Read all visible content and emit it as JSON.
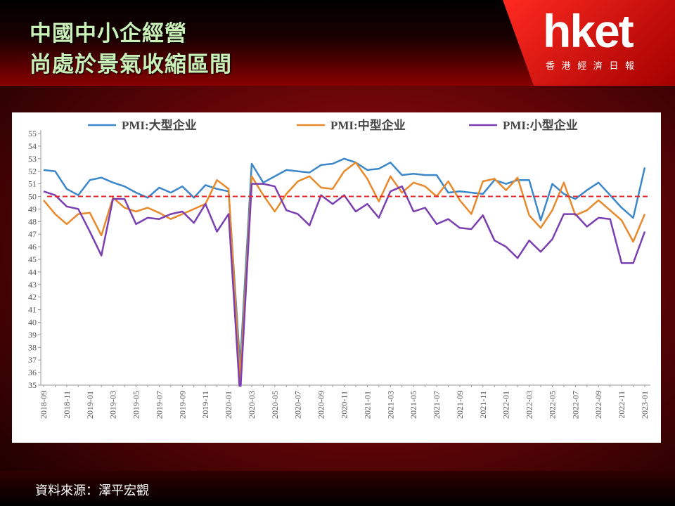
{
  "header": {
    "title_line1": "中國中小企經營",
    "title_line2": "尚處於景氣收縮區間",
    "logo": "hket",
    "logo_subtitle": "香 港 經 濟 日 報"
  },
  "source": "資料來源：澤平宏觀",
  "chart_data": {
    "type": "line",
    "categories": [
      "2018-09",
      null,
      "2018-11",
      null,
      "2019-01",
      null,
      "2019-03",
      null,
      "2019-05",
      null,
      "2019-07",
      null,
      "2019-09",
      null,
      "2019-11",
      null,
      "2020-01",
      null,
      "2020-03",
      null,
      "2020-05",
      null,
      "2020-07",
      null,
      "2020-09",
      null,
      "2020-11",
      null,
      "2021-01",
      null,
      "2021-03",
      null,
      "2021-05",
      null,
      "2021-07",
      null,
      "2021-09",
      null,
      "2021-11",
      null,
      "2022-01",
      null,
      "2022-03",
      null,
      "2022-05",
      null,
      "2022-07",
      null,
      "2022-09",
      null,
      "2022-11",
      null,
      "2023-01"
    ],
    "series": [
      {
        "name": "PMI:大型企业",
        "color": "#3b87c9",
        "values": [
          52.1,
          52.0,
          50.6,
          50.1,
          51.3,
          51.5,
          51.1,
          50.8,
          50.3,
          49.9,
          50.7,
          50.3,
          50.8,
          49.9,
          50.9,
          50.6,
          50.4,
          36.6,
          52.6,
          51.1,
          51.6,
          52.1,
          52.0,
          51.9,
          52.5,
          52.6,
          53.0,
          52.7,
          52.1,
          52.2,
          52.7,
          51.7,
          51.8,
          51.7,
          51.7,
          50.3,
          50.4,
          50.3,
          50.2,
          51.3,
          51.0,
          51.3,
          51.3,
          48.1,
          51.0,
          50.2,
          49.8,
          50.5,
          51.1,
          50.1,
          49.1,
          48.3,
          52.3
        ]
      },
      {
        "name": "PMI:中型企业",
        "color": "#e8892b",
        "values": [
          49.7,
          48.6,
          47.8,
          48.6,
          48.7,
          46.9,
          49.9,
          49.1,
          48.8,
          49.1,
          48.7,
          48.2,
          48.6,
          49.0,
          49.4,
          51.3,
          50.6,
          35.5,
          51.6,
          50.1,
          48.8,
          50.2,
          51.2,
          51.6,
          50.7,
          50.6,
          52.0,
          52.7,
          51.4,
          49.6,
          51.6,
          50.3,
          51.1,
          50.8,
          50.0,
          51.2,
          49.7,
          48.6,
          51.2,
          51.4,
          50.5,
          51.5,
          48.5,
          47.5,
          48.9,
          51.1,
          48.5,
          48.9,
          49.7,
          48.9,
          48.1,
          46.4,
          48.6
        ]
      },
      {
        "name": "PMI:小型企业",
        "color": "#7b3fb2",
        "values": [
          50.4,
          50.1,
          49.2,
          49.0,
          47.2,
          45.3,
          49.8,
          49.8,
          47.8,
          48.3,
          48.2,
          48.6,
          48.8,
          47.9,
          49.4,
          47.2,
          48.6,
          34.1,
          51.0,
          51.0,
          50.8,
          48.9,
          48.6,
          47.7,
          50.1,
          49.4,
          50.1,
          48.8,
          49.4,
          48.3,
          50.4,
          50.8,
          48.8,
          49.1,
          47.8,
          48.2,
          47.5,
          47.4,
          48.5,
          46.5,
          46.0,
          45.1,
          46.5,
          45.6,
          46.6,
          48.6,
          48.6,
          47.6,
          48.3,
          48.2,
          44.7,
          44.7,
          47.2
        ]
      }
    ],
    "ylim": [
      35,
      55
    ],
    "yticks": [
      35,
      36,
      37,
      38,
      39,
      40,
      41,
      42,
      43,
      44,
      45,
      46,
      47,
      48,
      49,
      50,
      51,
      52,
      53,
      54,
      55
    ],
    "reference_line": {
      "value": 50,
      "color": "#e3262a"
    },
    "grid": false,
    "legend": "top"
  }
}
